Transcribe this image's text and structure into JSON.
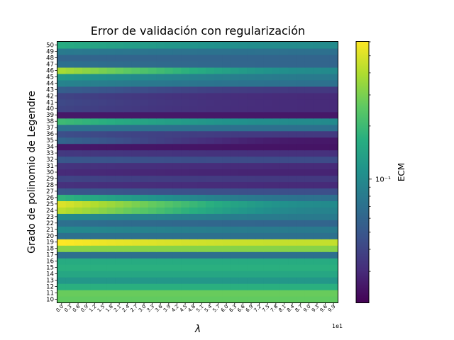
{
  "chart_data": {
    "type": "heatmap",
    "title": "Error de validación con regularización",
    "xlabel": "λ",
    "ylabel": "Grado de polinomio de Legendre",
    "x_offset_text": "1e1",
    "x_ticks": [
      "0.0",
      "0.3",
      "0.6",
      "0.9",
      "1.2",
      "1.5",
      "1.8",
      "2.1",
      "2.4",
      "2.7",
      "3.0",
      "3.3",
      "3.6",
      "3.9",
      "4.2",
      "4.5",
      "4.8",
      "5.1",
      "5.4",
      "5.7",
      "6.0",
      "6.3",
      "6.6",
      "6.9",
      "7.2",
      "7.5",
      "7.8",
      "8.1",
      "8.4",
      "8.7",
      "9.0",
      "9.3",
      "9.6",
      "9.9"
    ],
    "y_ticks": [
      "10",
      "11",
      "12",
      "13",
      "14",
      "15",
      "16",
      "17",
      "18",
      "19",
      "20",
      "21",
      "22",
      "23",
      "24",
      "25",
      "26",
      "27",
      "28",
      "29",
      "30",
      "31",
      "32",
      "33",
      "34",
      "35",
      "36",
      "37",
      "38",
      "39",
      "40",
      "41",
      "42",
      "43",
      "44",
      "45",
      "46",
      "47",
      "48",
      "49",
      "50"
    ],
    "colorbar": {
      "label": "ECM",
      "scale": "log",
      "colormap": "viridis",
      "tick_label": "10⁻¹",
      "vmin": 0.02,
      "vmax": 0.6
    },
    "rows": [
      {
        "degree": 10,
        "start": 0.26,
        "end": 0.26
      },
      {
        "degree": 11,
        "start": 0.27,
        "end": 0.27
      },
      {
        "degree": 12,
        "start": 0.17,
        "end": 0.17
      },
      {
        "degree": 13,
        "start": 0.12,
        "end": 0.12
      },
      {
        "degree": 14,
        "start": 0.15,
        "end": 0.15
      },
      {
        "degree": 15,
        "start": 0.17,
        "end": 0.17
      },
      {
        "degree": 16,
        "start": 0.16,
        "end": 0.16
      },
      {
        "degree": 17,
        "start": 0.07,
        "end": 0.07
      },
      {
        "degree": 18,
        "start": 0.32,
        "end": 0.32
      },
      {
        "degree": 19,
        "start": 0.6,
        "end": 0.44
      },
      {
        "degree": 20,
        "start": 0.07,
        "end": 0.07
      },
      {
        "degree": 21,
        "start": 0.1,
        "end": 0.08
      },
      {
        "degree": 22,
        "start": 0.07,
        "end": 0.06
      },
      {
        "degree": 23,
        "start": 0.1,
        "end": 0.08
      },
      {
        "degree": 24,
        "start": 0.42,
        "end": 0.09
      },
      {
        "degree": 25,
        "start": 0.5,
        "end": 0.1
      },
      {
        "degree": 26,
        "start": 0.18,
        "end": 0.07
      },
      {
        "degree": 27,
        "start": 0.05,
        "end": 0.045
      },
      {
        "degree": 28,
        "start": 0.032,
        "end": 0.03
      },
      {
        "degree": 29,
        "start": 0.04,
        "end": 0.035
      },
      {
        "degree": 30,
        "start": 0.03,
        "end": 0.028
      },
      {
        "degree": 31,
        "start": 0.033,
        "end": 0.03
      },
      {
        "degree": 32,
        "start": 0.05,
        "end": 0.043
      },
      {
        "degree": 33,
        "start": 0.035,
        "end": 0.032
      },
      {
        "degree": 34,
        "start": 0.025,
        "end": 0.024
      },
      {
        "degree": 35,
        "start": 0.06,
        "end": 0.025
      },
      {
        "degree": 36,
        "start": 0.045,
        "end": 0.035
      },
      {
        "degree": 37,
        "start": 0.07,
        "end": 0.07
      },
      {
        "degree": 38,
        "start": 0.2,
        "end": 0.1
      },
      {
        "degree": 39,
        "start": 0.025,
        "end": 0.025
      },
      {
        "degree": 40,
        "start": 0.04,
        "end": 0.03
      },
      {
        "degree": 41,
        "start": 0.042,
        "end": 0.03
      },
      {
        "degree": 42,
        "start": 0.04,
        "end": 0.03
      },
      {
        "degree": 43,
        "start": 0.055,
        "end": 0.035
      },
      {
        "degree": 44,
        "start": 0.09,
        "end": 0.07
      },
      {
        "degree": 45,
        "start": 0.12,
        "end": 0.08
      },
      {
        "degree": 46,
        "start": 0.38,
        "end": 0.1
      },
      {
        "degree": 47,
        "start": 0.07,
        "end": 0.06
      },
      {
        "degree": 48,
        "start": 0.06,
        "end": 0.06
      },
      {
        "degree": 49,
        "start": 0.08,
        "end": 0.07
      },
      {
        "degree": 50,
        "start": 0.16,
        "end": 0.1
      }
    ]
  }
}
